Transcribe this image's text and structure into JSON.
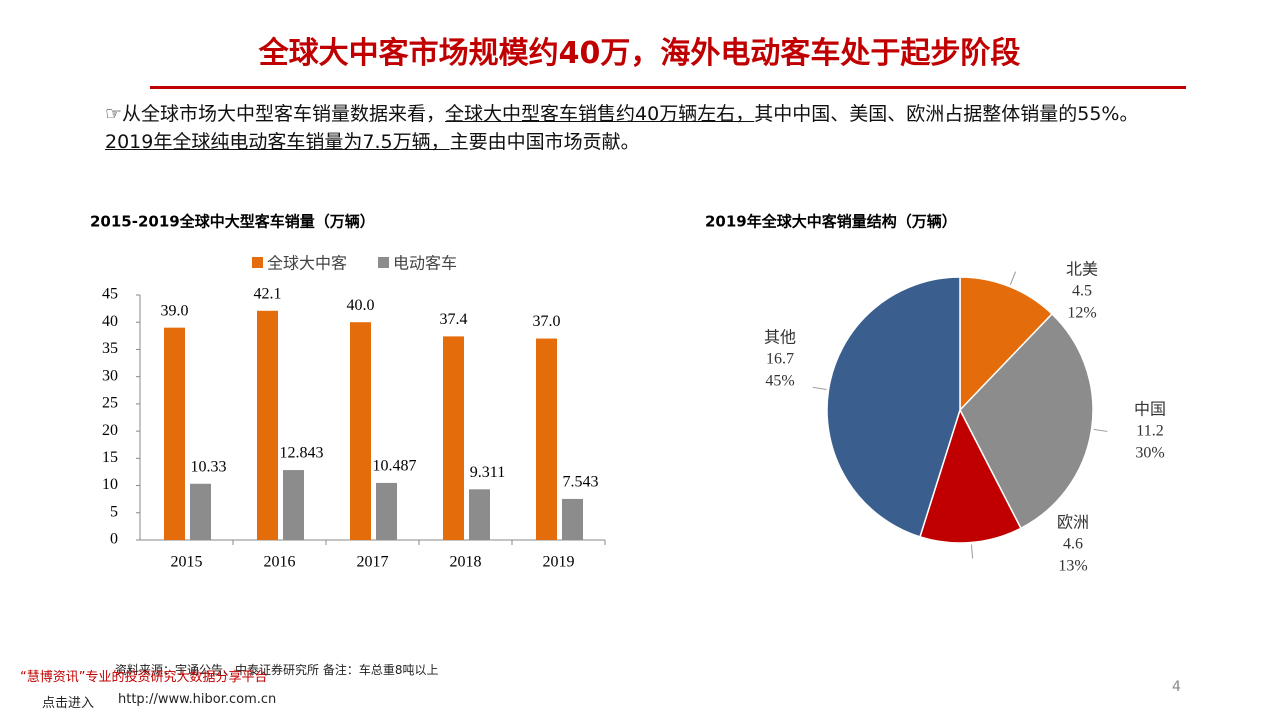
{
  "header": {
    "title": "全球大中客市场规模约40万，海外电动客车处于起步阶段"
  },
  "paragraph": {
    "segments": [
      {
        "text": "☞从全球市场大中型客车销量数据来看，",
        "underline": false
      },
      {
        "text": "全球大中型客车销售约40万辆左右，",
        "underline": true
      },
      {
        "text": "其中中国、美国、欧洲占据整体销量的55%。",
        "underline": false
      },
      {
        "text": "2019年全球纯电动客车销量为7.5万辆，",
        "underline": true
      },
      {
        "text": "主要由中国市场贡献。",
        "underline": false
      }
    ]
  },
  "chart_data": [
    {
      "type": "bar",
      "title": "2015-2019全球中大型客车销量（万辆）",
      "categories": [
        "2015",
        "2016",
        "2017",
        "2018",
        "2019"
      ],
      "series": [
        {
          "name": "全球大中客",
          "color": "#E46C0A",
          "values": [
            39.0,
            42.1,
            40.0,
            37.4,
            37.0
          ],
          "value_labels": [
            "39.0",
            "42.1",
            "40.0",
            "37.4",
            "37.0"
          ]
        },
        {
          "name": "电动客车",
          "color": "#8C8C8C",
          "values": [
            10.33,
            12.843,
            10.487,
            9.311,
            7.543
          ]
        }
      ],
      "ylim": [
        0,
        45
      ],
      "yticks": [
        0,
        5,
        10,
        15,
        20,
        25,
        30,
        35,
        40,
        45
      ],
      "legend": "top"
    },
    {
      "type": "pie",
      "title": "2019年全球大中客销量结构（万辆）",
      "categories": [
        "北美",
        "中国",
        "欧洲",
        "其他"
      ],
      "values": [
        4.5,
        11.2,
        4.6,
        16.7
      ],
      "percentages": [
        12,
        30,
        13,
        45
      ],
      "percentage_labels": [
        "12%",
        "30%",
        "13%",
        "45%"
      ],
      "colors": [
        "#E46C0A",
        "#8C8C8C",
        "#C00000",
        "#3A5F8F"
      ]
    }
  ],
  "footer": {
    "source": "资料来源：宇通公告、中泰证券研究所 备注：车总重8吨以上",
    "watermark": "“慧博资讯”专业的投资研究大数据分享平台",
    "link_text": "点击进入",
    "url": "http://www.hibor.com.cn",
    "page_number": "4"
  }
}
